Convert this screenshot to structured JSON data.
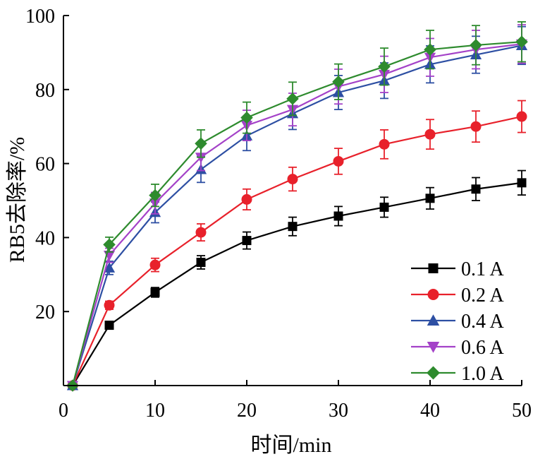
{
  "chart_data": {
    "type": "line",
    "xlabel": "时间/min",
    "ylabel": "RB5去除率/%",
    "xlim": [
      0,
      50
    ],
    "ylim": [
      0,
      100
    ],
    "x_ticks": [
      0,
      10,
      20,
      30,
      40,
      50
    ],
    "y_ticks": [
      20,
      40,
      60,
      80,
      100
    ],
    "x_tick_labels": [
      "0",
      "10",
      "20",
      "30",
      "40",
      "50"
    ],
    "y_tick_labels": [
      "20",
      "40",
      "60",
      "80",
      "100"
    ],
    "grid": false,
    "legend_position": "bottom-right",
    "x": [
      0,
      5,
      10,
      15,
      20,
      25,
      30,
      35,
      40,
      45,
      50
    ],
    "series": [
      {
        "name": "0.1 A",
        "color": "#000000",
        "marker": "square",
        "values": [
          0,
          16.3,
          25.2,
          33.3,
          39.2,
          43.0,
          45.8,
          48.2,
          50.6,
          53.1,
          54.8
        ],
        "errors": [
          0,
          0.8,
          1.3,
          1.8,
          2.3,
          2.5,
          2.6,
          2.7,
          2.9,
          3.1,
          3.3
        ]
      },
      {
        "name": "0.2 A",
        "color": "#e8212b",
        "marker": "circle",
        "values": [
          0,
          21.7,
          32.6,
          41.4,
          50.3,
          55.8,
          60.6,
          65.2,
          67.9,
          70.0,
          72.7
        ],
        "errors": [
          0,
          1.1,
          1.8,
          2.3,
          2.8,
          3.2,
          3.5,
          3.9,
          4.0,
          4.2,
          4.3
        ]
      },
      {
        "name": "0.4 A",
        "color": "#2d4fa3",
        "marker": "triangle-up",
        "values": [
          0,
          31.8,
          46.8,
          58.4,
          67.5,
          73.5,
          79.2,
          82.4,
          86.8,
          89.4,
          91.9
        ],
        "errors": [
          0,
          1.8,
          2.8,
          3.5,
          4.0,
          4.3,
          4.6,
          4.8,
          5.0,
          5.0,
          5.1
        ]
      },
      {
        "name": "0.6 A",
        "color": "#a442c8",
        "marker": "triangle-down",
        "values": [
          0,
          35.2,
          49.3,
          61.7,
          70.3,
          74.6,
          80.8,
          84.1,
          88.7,
          90.8,
          92.3
        ],
        "errors": [
          0,
          1.9,
          2.9,
          3.6,
          4.1,
          4.4,
          4.7,
          4.9,
          5.1,
          5.2,
          5.2
        ]
      },
      {
        "name": "1.0 A",
        "color": "#2e8b2e",
        "marker": "diamond",
        "values": [
          0,
          38.1,
          51.4,
          65.4,
          72.4,
          77.5,
          82.1,
          86.2,
          90.8,
          92.0,
          92.9
        ],
        "errors": [
          0,
          2.0,
          3.0,
          3.7,
          4.2,
          4.5,
          4.8,
          5.0,
          5.2,
          5.3,
          5.4
        ]
      }
    ]
  }
}
